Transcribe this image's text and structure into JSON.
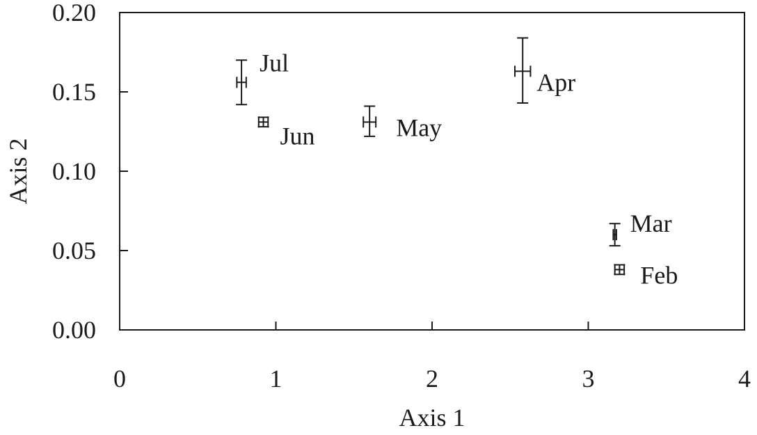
{
  "chart_data": {
    "type": "scatter",
    "title": "",
    "xlabel": "Axis 1",
    "ylabel": "Axis 2",
    "xlim": [
      0,
      4
    ],
    "ylim": [
      0,
      0.2
    ],
    "xticks": [
      "0",
      "1",
      "2",
      "3",
      "4"
    ],
    "yticks": [
      "0.00",
      "0.05",
      "0.10",
      "0.15",
      "0.20"
    ],
    "grid": false,
    "legend": "none",
    "points": [
      {
        "label": "Jul",
        "x": 0.78,
        "y": 0.156,
        "xerr": 0.03,
        "yerr_low": 0.014,
        "yerr_high": 0.014
      },
      {
        "label": "Jun",
        "x": 0.92,
        "y": 0.131,
        "xerr": 0.03,
        "yerr_low": 0.003,
        "yerr_high": 0.003
      },
      {
        "label": "May",
        "x": 1.6,
        "y": 0.131,
        "xerr": 0.04,
        "yerr_low": 0.009,
        "yerr_high": 0.01
      },
      {
        "label": "Apr",
        "x": 2.58,
        "y": 0.163,
        "xerr": 0.05,
        "yerr_low": 0.02,
        "yerr_high": 0.021
      },
      {
        "label": "Mar",
        "x": 3.17,
        "y": 0.06,
        "xerr": 0.01,
        "yerr_low": 0.007,
        "yerr_high": 0.007
      },
      {
        "label": "Feb",
        "x": 3.2,
        "y": 0.038,
        "xerr": 0.03,
        "yerr_low": 0.003,
        "yerr_high": 0.003
      }
    ]
  }
}
